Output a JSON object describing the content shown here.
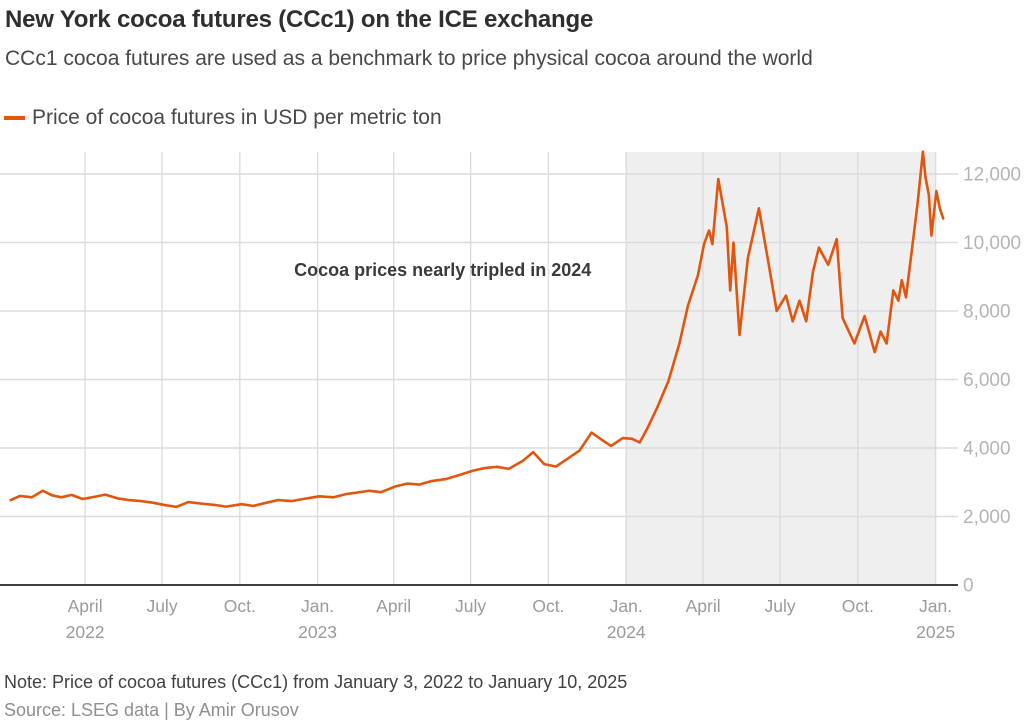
{
  "header": {
    "title": "New York cocoa futures (CCc1) on the ICE exchange",
    "subtitle": "CCc1 cocoa futures are used as a benchmark to price physical cocoa around the world"
  },
  "legend": {
    "label": "Price of cocoa futures in USD per metric ton",
    "swatch_color": "#E1560F"
  },
  "footer": {
    "note": "Note: Price of cocoa futures (CCc1) from January 3, 2022 to January 10, 2025",
    "source": "Source: LSEG data | By Amir Orusov"
  },
  "chart_data": {
    "type": "line",
    "title": "New York cocoa futures (CCc1) on the ICE exchange",
    "xlabel": "",
    "ylabel": "USD per metric ton",
    "ylim": [
      0,
      12642
    ],
    "grid": true,
    "legend_position": "top-left",
    "colors": {
      "line": "#E1560F",
      "grid": "#dcdcdc",
      "baseline": "#3f3f3f",
      "band": "#efefef",
      "x_tick_text": "#9b9b9b",
      "y_tick_text": "#b4b4b4",
      "annotation_text": "#3a3a3a"
    },
    "x_ticks": [
      {
        "date": "2022-04-01",
        "label": "April",
        "year": "2022"
      },
      {
        "date": "2022-07-01",
        "label": "July",
        "year": ""
      },
      {
        "date": "2022-10-01",
        "label": "Oct.",
        "year": ""
      },
      {
        "date": "2023-01-01",
        "label": "Jan.",
        "year": "2023"
      },
      {
        "date": "2023-04-01",
        "label": "April",
        "year": ""
      },
      {
        "date": "2023-07-01",
        "label": "July",
        "year": ""
      },
      {
        "date": "2023-10-01",
        "label": "Oct.",
        "year": ""
      },
      {
        "date": "2024-01-01",
        "label": "Jan.",
        "year": "2024"
      },
      {
        "date": "2024-04-01",
        "label": "April",
        "year": ""
      },
      {
        "date": "2024-07-01",
        "label": "July",
        "year": ""
      },
      {
        "date": "2024-10-01",
        "label": "Oct.",
        "year": ""
      },
      {
        "date": "2025-01-01",
        "label": "Jan.",
        "year": "2025"
      }
    ],
    "y_ticks": [
      {
        "value": 0,
        "label": "0"
      },
      {
        "value": 2000,
        "label": "2,000"
      },
      {
        "value": 4000,
        "label": "4,000"
      },
      {
        "value": 6000,
        "label": "6,000"
      },
      {
        "value": 8000,
        "label": "8,000"
      },
      {
        "value": 10000,
        "label": "10,000"
      },
      {
        "value": 12000,
        "label": "12,000"
      }
    ],
    "highlight_band": {
      "start": "2024-01-01",
      "end": "2025-01-01"
    },
    "annotation": {
      "text": "Cocoa prices nearly tripled in 2024",
      "x_date": "2023-05-29",
      "y_value": 9200
    },
    "series": [
      {
        "name": "Price of cocoa futures in USD per metric ton",
        "color": "#E1560F",
        "points": [
          [
            "2022-01-03",
            2480
          ],
          [
            "2022-01-14",
            2600
          ],
          [
            "2022-01-28",
            2560
          ],
          [
            "2022-02-10",
            2750
          ],
          [
            "2022-02-21",
            2620
          ],
          [
            "2022-03-04",
            2560
          ],
          [
            "2022-03-16",
            2630
          ],
          [
            "2022-03-29",
            2510
          ],
          [
            "2022-04-11",
            2570
          ],
          [
            "2022-04-25",
            2640
          ],
          [
            "2022-05-09",
            2530
          ],
          [
            "2022-05-23",
            2480
          ],
          [
            "2022-06-06",
            2450
          ],
          [
            "2022-06-21",
            2400
          ],
          [
            "2022-07-05",
            2330
          ],
          [
            "2022-07-18",
            2280
          ],
          [
            "2022-08-01",
            2420
          ],
          [
            "2022-08-15",
            2380
          ],
          [
            "2022-09-01",
            2340
          ],
          [
            "2022-09-15",
            2290
          ],
          [
            "2022-10-03",
            2360
          ],
          [
            "2022-10-17",
            2310
          ],
          [
            "2022-11-01",
            2400
          ],
          [
            "2022-11-15",
            2480
          ],
          [
            "2022-12-01",
            2450
          ],
          [
            "2022-12-15",
            2510
          ],
          [
            "2023-01-03",
            2590
          ],
          [
            "2023-01-20",
            2560
          ],
          [
            "2023-02-03",
            2650
          ],
          [
            "2023-02-17",
            2700
          ],
          [
            "2023-03-03",
            2750
          ],
          [
            "2023-03-17",
            2710
          ],
          [
            "2023-04-03",
            2880
          ],
          [
            "2023-04-17",
            2960
          ],
          [
            "2023-05-01",
            2930
          ],
          [
            "2023-05-15",
            3030
          ],
          [
            "2023-06-01",
            3090
          ],
          [
            "2023-06-15",
            3190
          ],
          [
            "2023-07-03",
            3330
          ],
          [
            "2023-07-17",
            3410
          ],
          [
            "2023-08-01",
            3450
          ],
          [
            "2023-08-15",
            3390
          ],
          [
            "2023-09-01",
            3630
          ],
          [
            "2023-09-13",
            3880
          ],
          [
            "2023-09-26",
            3530
          ],
          [
            "2023-10-10",
            3460
          ],
          [
            "2023-10-24",
            3690
          ],
          [
            "2023-11-07",
            3930
          ],
          [
            "2023-11-21",
            4450
          ],
          [
            "2023-12-05",
            4210
          ],
          [
            "2023-12-14",
            4060
          ],
          [
            "2023-12-28",
            4290
          ],
          [
            "2024-01-08",
            4270
          ],
          [
            "2024-01-17",
            4160
          ],
          [
            "2024-01-26",
            4570
          ],
          [
            "2024-02-07",
            5200
          ],
          [
            "2024-02-20",
            5950
          ],
          [
            "2024-03-04",
            7050
          ],
          [
            "2024-03-14",
            8150
          ],
          [
            "2024-03-26",
            9050
          ],
          [
            "2024-04-02",
            9950
          ],
          [
            "2024-04-08",
            10350
          ],
          [
            "2024-04-12",
            9950
          ],
          [
            "2024-04-19",
            11850
          ],
          [
            "2024-04-29",
            10450
          ],
          [
            "2024-05-03",
            8600
          ],
          [
            "2024-05-07",
            10000
          ],
          [
            "2024-05-14",
            7300
          ],
          [
            "2024-05-24",
            9550
          ],
          [
            "2024-06-06",
            11000
          ],
          [
            "2024-06-17",
            9450
          ],
          [
            "2024-06-27",
            8000
          ],
          [
            "2024-07-08",
            8450
          ],
          [
            "2024-07-16",
            7700
          ],
          [
            "2024-07-24",
            8300
          ],
          [
            "2024-08-01",
            7700
          ],
          [
            "2024-08-09",
            9150
          ],
          [
            "2024-08-16",
            9850
          ],
          [
            "2024-08-27",
            9350
          ],
          [
            "2024-09-06",
            10100
          ],
          [
            "2024-09-13",
            7800
          ],
          [
            "2024-09-27",
            7050
          ],
          [
            "2024-10-09",
            7850
          ],
          [
            "2024-10-21",
            6800
          ],
          [
            "2024-10-28",
            7400
          ],
          [
            "2024-11-04",
            7050
          ],
          [
            "2024-11-12",
            8600
          ],
          [
            "2024-11-18",
            8300
          ],
          [
            "2024-11-22",
            8900
          ],
          [
            "2024-11-27",
            8400
          ],
          [
            "2024-12-05",
            10000
          ],
          [
            "2024-12-11",
            11200
          ],
          [
            "2024-12-17",
            12650
          ],
          [
            "2024-12-20",
            11900
          ],
          [
            "2024-12-24",
            11400
          ],
          [
            "2024-12-27",
            10200
          ],
          [
            "2025-01-02",
            11500
          ],
          [
            "2025-01-06",
            11000
          ],
          [
            "2025-01-10",
            10700
          ]
        ]
      }
    ]
  }
}
